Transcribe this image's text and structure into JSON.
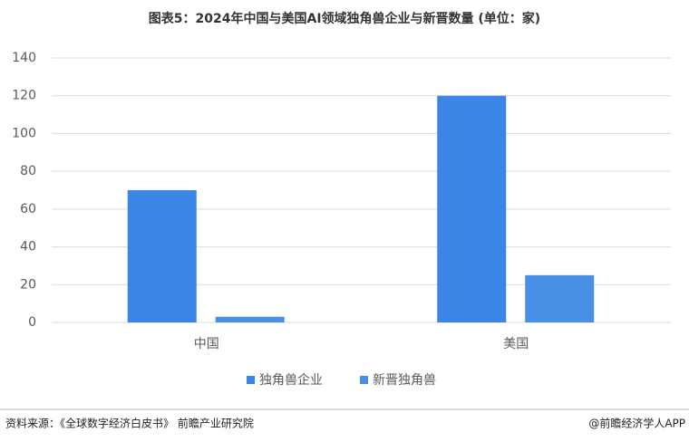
{
  "chart_data": {
    "type": "bar",
    "title": "图表5：2024年中国与美国AI领域独角兽企业与新晋数量 (单位：家)",
    "categories": [
      "中国",
      "美国"
    ],
    "series": [
      {
        "name": "独角兽企业",
        "color": "#3a85e5",
        "values": [
          70,
          120
        ]
      },
      {
        "name": "新晋独角兽",
        "color": "#4a8fe6",
        "values": [
          3,
          25
        ]
      }
    ],
    "ylim": [
      0,
      140
    ],
    "yticks": [
      0,
      20,
      40,
      60,
      80,
      100,
      120,
      140
    ],
    "grid": true,
    "legend": "bottom",
    "source": "资料来源：《全球数字经济白皮书》 前瞻产业研究院",
    "credit": "@前瞻经济学人APP"
  }
}
